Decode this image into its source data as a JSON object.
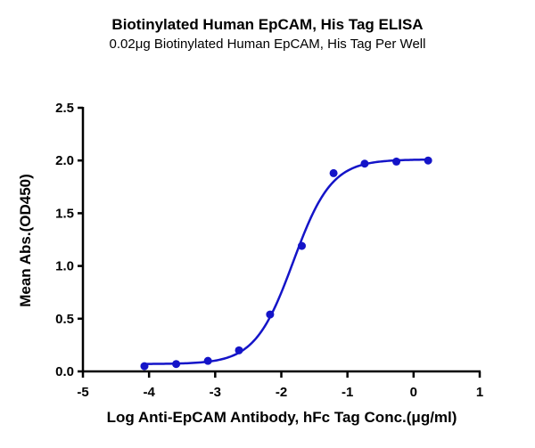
{
  "chart_data": {
    "type": "scatter",
    "title": "Biotinylated Human EpCAM, His Tag ELISA",
    "subtitle": "0.02μg Biotinylated Human EpCAM, His Tag Per Well",
    "xlabel": "Log Anti-EpCAM Antibody, hFc Tag Conc.(μg/ml)",
    "ylabel": "Mean Abs.(OD450)",
    "xlim": [
      -5,
      1
    ],
    "ylim": [
      0,
      2.5
    ],
    "xticks": [
      "-5",
      "-4",
      "-3",
      "-2",
      "-1",
      "0",
      "1"
    ],
    "yticks": [
      "0.0",
      "0.5",
      "1.0",
      "1.5",
      "2.0",
      "2.5"
    ],
    "grid": false,
    "legend": null,
    "series": [
      {
        "name": "Anti-EpCAM Antibody, hFc Tag",
        "color": "#1414c8",
        "x": [
          -4.07,
          -3.59,
          -3.11,
          -2.64,
          -2.17,
          -1.69,
          -1.21,
          -0.74,
          -0.26,
          0.22
        ],
        "y": [
          0.05,
          0.07,
          0.1,
          0.2,
          0.54,
          1.19,
          1.88,
          1.97,
          1.99,
          2.0
        ],
        "fit": {
          "model": "4PL",
          "bottom": 0.07,
          "top": 2.01,
          "logEC50": -1.82,
          "hill": 1.5
        }
      }
    ]
  }
}
